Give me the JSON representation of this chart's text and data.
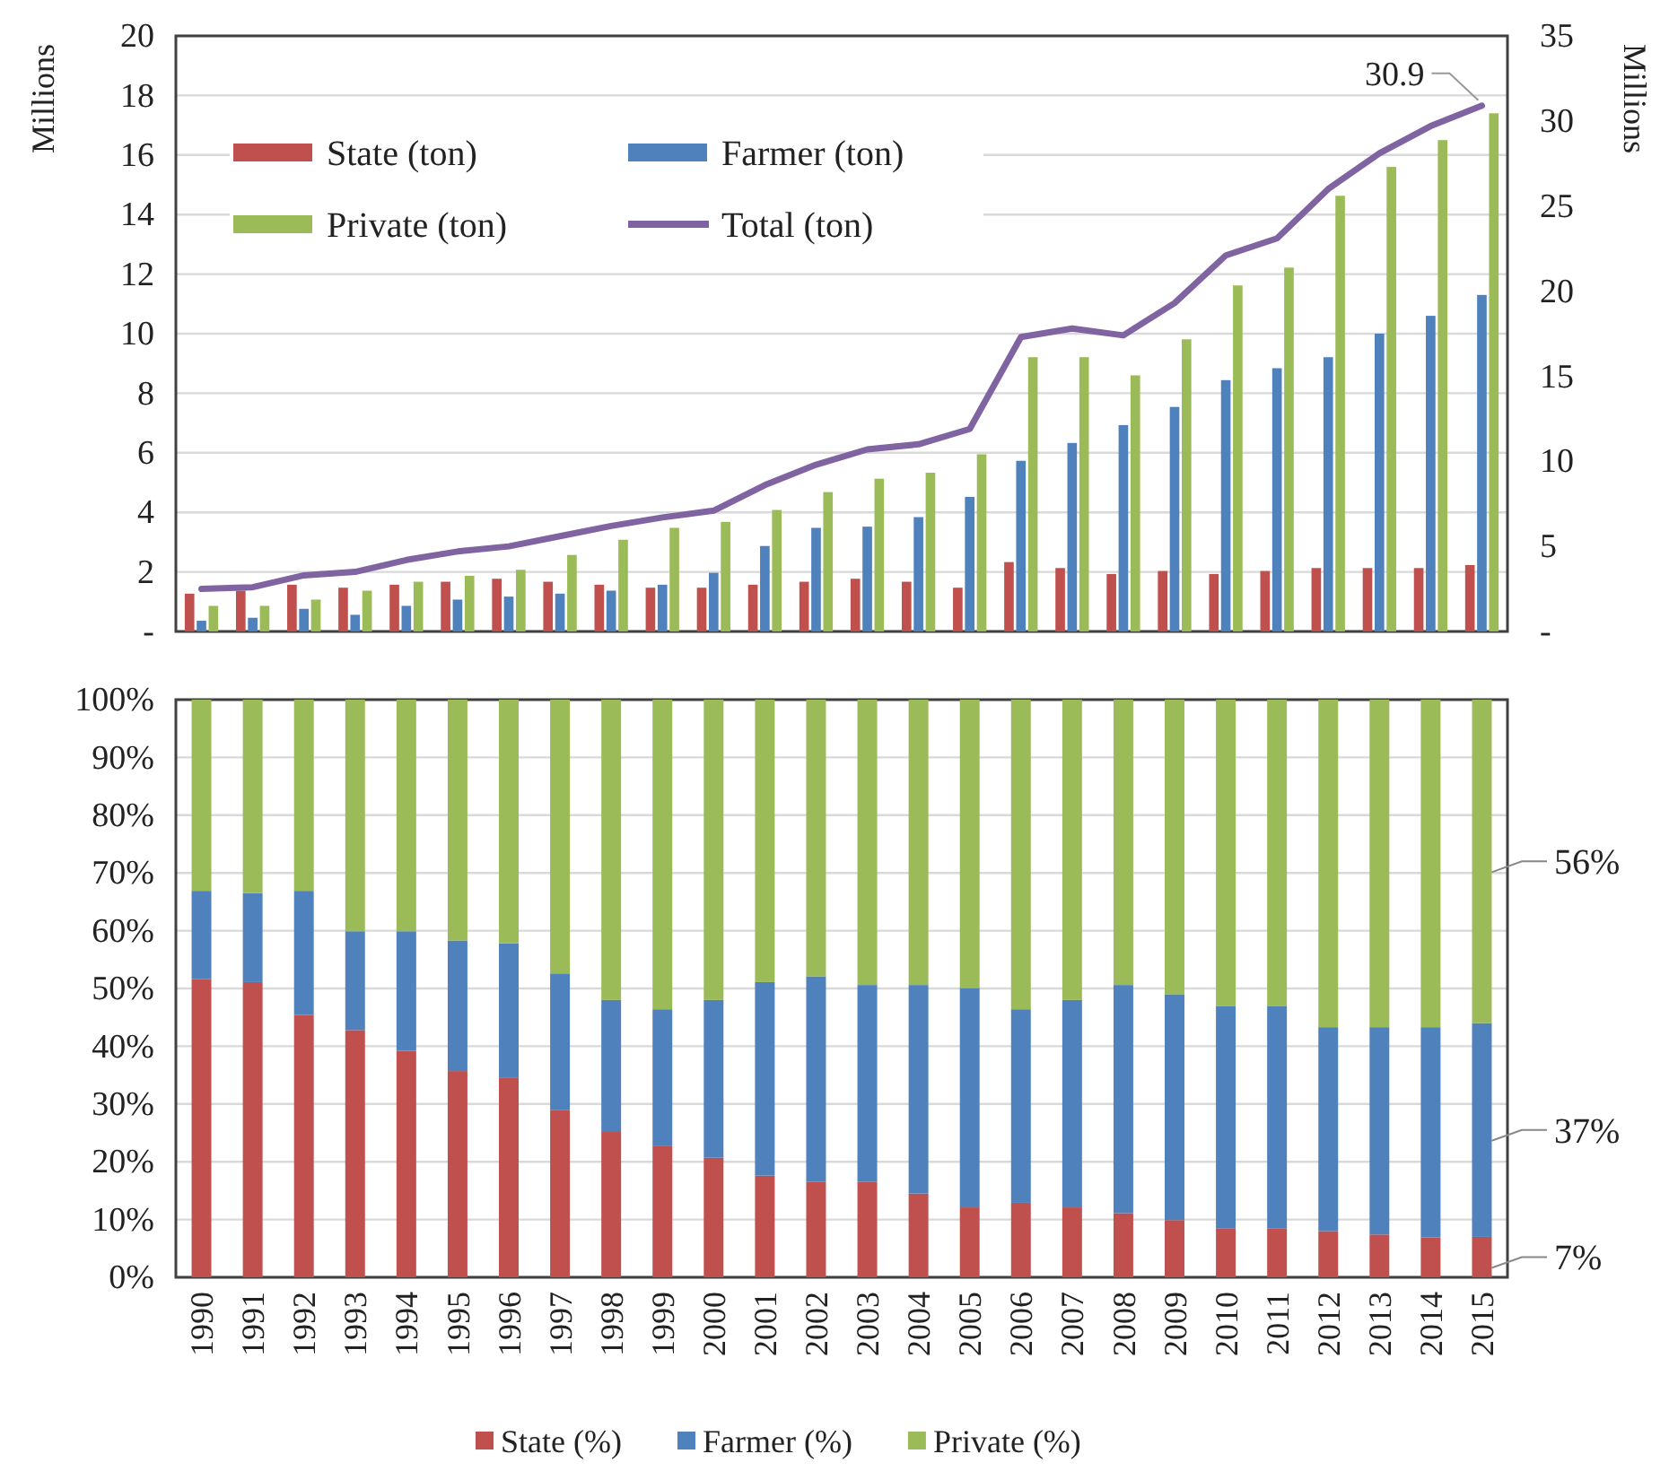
{
  "chart_data": [
    {
      "type": "bar",
      "categories": [
        null,
        null,
        null,
        null,
        null,
        null,
        null,
        null,
        null,
        null,
        null,
        null,
        null,
        null,
        null,
        null,
        null,
        null,
        null,
        null,
        null,
        null,
        null,
        null,
        null,
        null
      ],
      "ylabel": "Millions",
      "y2label": "Millions",
      "ylim": [
        0,
        20
      ],
      "yticks": [
        {
          "value": 0,
          "label": "-"
        },
        2,
        4,
        6,
        8,
        10,
        12,
        14,
        16,
        18,
        20
      ],
      "y2lim": [
        0,
        35
      ],
      "y2ticks": [
        {
          "value": 0,
          "label": "-"
        },
        5,
        10,
        15,
        20,
        25,
        30,
        35
      ],
      "grid": "y",
      "legend": "top",
      "tick_labels": "y",
      "series": [
        {
          "name": "State (ton)",
          "color": "#c0504d",
          "values": [
            1.27,
            1.37,
            1.57,
            1.47,
            1.57,
            1.67,
            1.77,
            1.67,
            1.57,
            1.47,
            1.47,
            1.57,
            1.67,
            1.77,
            1.67,
            1.47,
            2.33,
            2.13,
            1.93,
            2.03,
            1.93,
            2.03,
            2.13,
            2.13,
            2.13,
            2.23
          ]
        },
        {
          "name": "Farmer (ton)",
          "color": "#4f81bd",
          "values": [
            0.36,
            0.46,
            0.76,
            0.56,
            0.86,
            1.07,
            1.17,
            1.27,
            1.37,
            1.57,
            1.97,
            2.87,
            3.48,
            3.52,
            3.84,
            4.52,
            5.73,
            6.33,
            6.93,
            7.54,
            8.44,
            8.84,
            9.21,
            10.0,
            10.6,
            11.3
          ]
        },
        {
          "name": "Private (ton)",
          "color": "#9bbb59",
          "values": [
            0.86,
            0.86,
            1.07,
            1.37,
            1.67,
            1.87,
            2.07,
            2.57,
            3.08,
            3.48,
            3.68,
            4.08,
            4.68,
            5.13,
            5.33,
            5.95,
            9.21,
            9.21,
            8.6,
            9.81,
            11.62,
            12.22,
            14.63,
            15.6,
            16.5,
            17.4
          ]
        },
        {
          "name": "Total (ton)",
          "type": "line",
          "axis": "y2",
          "color": "#8064a2",
          "values": [
            2.5,
            2.6,
            3.3,
            3.5,
            4.2,
            4.7,
            5.0,
            5.6,
            6.2,
            6.7,
            7.1,
            8.6,
            9.8,
            10.7,
            11.0,
            11.9,
            17.3,
            17.8,
            17.4,
            19.3,
            22.1,
            23.1,
            26.0,
            28.1,
            29.7,
            30.9
          ],
          "value_labels": [
            null,
            null,
            null,
            null,
            null,
            null,
            null,
            null,
            null,
            null,
            null,
            null,
            null,
            null,
            null,
            null,
            null,
            null,
            null,
            null,
            null,
            null,
            null,
            null,
            null,
            "30.9"
          ]
        }
      ]
    },
    {
      "type": "bar",
      "stacked": true,
      "categories": [
        "1990",
        "1991",
        "1992",
        "1993",
        "1994",
        "1995",
        "1996",
        "1997",
        "1998",
        "1999",
        "2000",
        "2001",
        "2002",
        "2003",
        "2004",
        "2005",
        "2006",
        "2007",
        "2008",
        "2009",
        "2010",
        "2011",
        "2012",
        "2013",
        "2014",
        "2015"
      ],
      "ylim": [
        0,
        100
      ],
      "yticks": [
        {
          "value": 0,
          "label": "0%"
        },
        {
          "value": 10,
          "label": "10%"
        },
        {
          "value": 20,
          "label": "20%"
        },
        {
          "value": 30,
          "label": "30%"
        },
        {
          "value": 40,
          "label": "40%"
        },
        {
          "value": 50,
          "label": "50%"
        },
        {
          "value": 60,
          "label": "60%"
        },
        {
          "value": 70,
          "label": "70%"
        },
        {
          "value": 80,
          "label": "80%"
        },
        {
          "value": 90,
          "label": "90%"
        },
        {
          "value": 100,
          "label": "100%"
        }
      ],
      "grid": "y",
      "legend": "bottom",
      "series": [
        {
          "name": "State (%)",
          "color": "#c0504d",
          "values": [
            51.6,
            51.1,
            45.4,
            42.8,
            39.2,
            35.7,
            34.6,
            29.0,
            25.3,
            22.8,
            20.7,
            17.6,
            16.5,
            16.5,
            14.5,
            12.1,
            12.9,
            12.1,
            11.1,
            9.9,
            8.5,
            8.5,
            8.0,
            7.4,
            6.9,
            7
          ],
          "value_labels": [
            null,
            null,
            null,
            null,
            null,
            null,
            null,
            null,
            null,
            null,
            null,
            null,
            null,
            null,
            null,
            null,
            null,
            null,
            null,
            null,
            null,
            null,
            null,
            null,
            null,
            "7%"
          ]
        },
        {
          "name": "Farmer (%)",
          "color": "#4f81bd",
          "values": [
            15.3,
            15.4,
            21.5,
            17.1,
            20.7,
            22.6,
            23.2,
            23.6,
            22.7,
            23.6,
            27.3,
            33.5,
            35.6,
            34.1,
            36.1,
            38.0,
            33.5,
            35.9,
            39.5,
            39.1,
            38.4,
            38.4,
            35.3,
            35.9,
            36.4,
            37
          ],
          "value_labels": [
            null,
            null,
            null,
            null,
            null,
            null,
            null,
            null,
            null,
            null,
            null,
            null,
            null,
            null,
            null,
            null,
            null,
            null,
            null,
            null,
            null,
            null,
            null,
            null,
            null,
            "37%"
          ]
        },
        {
          "name": "Private (%)",
          "color": "#9bbb59",
          "values": [
            33.1,
            33.5,
            33.1,
            40.1,
            40.1,
            41.7,
            42.2,
            47.4,
            52.0,
            53.6,
            52.0,
            48.9,
            47.9,
            49.4,
            49.4,
            49.9,
            53.6,
            52.0,
            49.4,
            51.0,
            53.1,
            53.1,
            56.7,
            56.7,
            56.7,
            56
          ],
          "value_labels": [
            null,
            null,
            null,
            null,
            null,
            null,
            null,
            null,
            null,
            null,
            null,
            null,
            null,
            null,
            null,
            null,
            null,
            null,
            null,
            null,
            null,
            null,
            null,
            null,
            null,
            "56%"
          ]
        }
      ]
    }
  ]
}
